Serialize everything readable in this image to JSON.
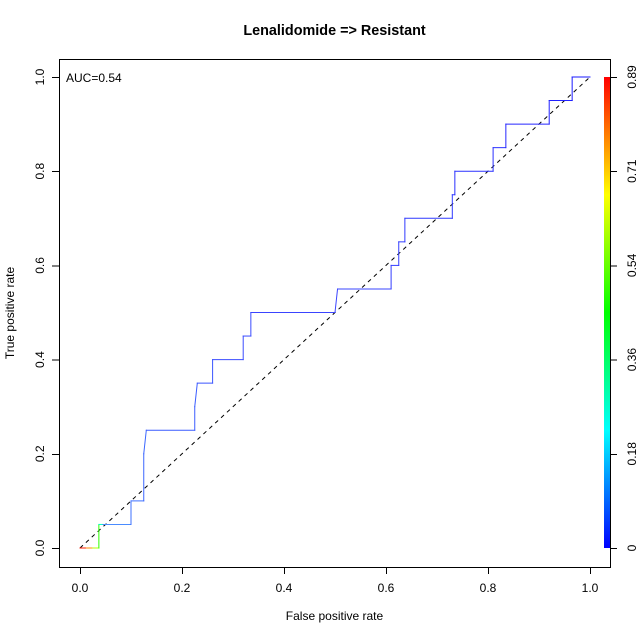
{
  "chart_data": {
    "type": "line",
    "title": "Lenalidomide => Resistant",
    "xlabel": "False positive rate",
    "ylabel": "True positive rate",
    "xlim": [
      0,
      1
    ],
    "ylim": [
      0,
      1
    ],
    "x_ticks": [
      0,
      0.2,
      0.4,
      0.6,
      0.8,
      1.0
    ],
    "x_tick_labels": [
      "0.0",
      "0.2",
      "0.4",
      "0.6",
      "0.8",
      "1.0"
    ],
    "y_ticks": [
      0,
      0.2,
      0.4,
      0.6,
      0.8,
      1.0
    ],
    "y_tick_labels": [
      "0.0",
      "0.2",
      "0.4",
      "0.6",
      "0.8",
      "1.0"
    ],
    "grid": false,
    "legend": "none",
    "annotation": "AUC=0.54",
    "series": [
      {
        "points": [
          [
            0,
            0
          ],
          [
            0.0125,
            0
          ],
          [
            0.025,
            0
          ],
          [
            0.037,
            0
          ],
          [
            0.037,
            0.05
          ],
          [
            0.045,
            0.05
          ],
          [
            0.1,
            0.05
          ],
          [
            0.1,
            0.1
          ],
          [
            0.125,
            0.1
          ],
          [
            0.125,
            0.2
          ],
          [
            0.13,
            0.25
          ],
          [
            0.225,
            0.25
          ],
          [
            0.225,
            0.3
          ],
          [
            0.23,
            0.35
          ],
          [
            0.26,
            0.35
          ],
          [
            0.26,
            0.4
          ],
          [
            0.32,
            0.4
          ],
          [
            0.32,
            0.45
          ],
          [
            0.335,
            0.45
          ],
          [
            0.335,
            0.5
          ],
          [
            0.5,
            0.5
          ],
          [
            0.505,
            0.55
          ],
          [
            0.61,
            0.55
          ],
          [
            0.61,
            0.6
          ],
          [
            0.625,
            0.6
          ],
          [
            0.625,
            0.65
          ],
          [
            0.637,
            0.65
          ],
          [
            0.637,
            0.7
          ],
          [
            0.73,
            0.7
          ],
          [
            0.73,
            0.75
          ],
          [
            0.735,
            0.75
          ],
          [
            0.735,
            0.8
          ],
          [
            0.81,
            0.8
          ],
          [
            0.81,
            0.85
          ],
          [
            0.835,
            0.85
          ],
          [
            0.835,
            0.9
          ],
          [
            0.92,
            0.9
          ],
          [
            0.92,
            0.95
          ],
          [
            0.965,
            0.95
          ],
          [
            0.965,
            1.0
          ],
          [
            1.0,
            1.0
          ]
        ],
        "segment_colors": [
          "#ff1a00",
          "#ff8c00",
          "#b2ff00",
          "#2bff00",
          "#00ffbf",
          "#4a8cff",
          "#3d70ff",
          "#3d70ff",
          "#3a66ff",
          "#3a66ff",
          "#3a5cff",
          "#3a5cff",
          "#3a5cff",
          "#3a55ff",
          "#3a55ff",
          "#3a4cff",
          "#3a4cff",
          "#3a4cff",
          "#3a4cff",
          "#3a44ff",
          "#3a44ff",
          "#3a44ff",
          "#333dff",
          "#333dff",
          "#333dff",
          "#333dff",
          "#2e38ff",
          "#2e38ff",
          "#2e38ff",
          "#2e38ff",
          "#2a30ff",
          "#2a30ff",
          "#2a30ff",
          "#2a30ff",
          "#2626ff",
          "#2626ff",
          "#2020ff",
          "#2020ff",
          "#1a1aff",
          "#1a1aff"
        ]
      }
    ],
    "reference_line": {
      "x": [
        0,
        1
      ],
      "y": [
        0,
        1
      ],
      "style": "dashed",
      "color": "#000000"
    },
    "colorbar": {
      "position": "right",
      "range": [
        0,
        0.89
      ],
      "tick_labels": [
        "0",
        "0.18",
        "0.36",
        "0.54",
        "0.71",
        "0.89"
      ],
      "gradient_top_to_bottom": [
        "#ff0000",
        "#ffff00",
        "#00ff00",
        "#00ffff",
        "#0000ff"
      ]
    }
  }
}
